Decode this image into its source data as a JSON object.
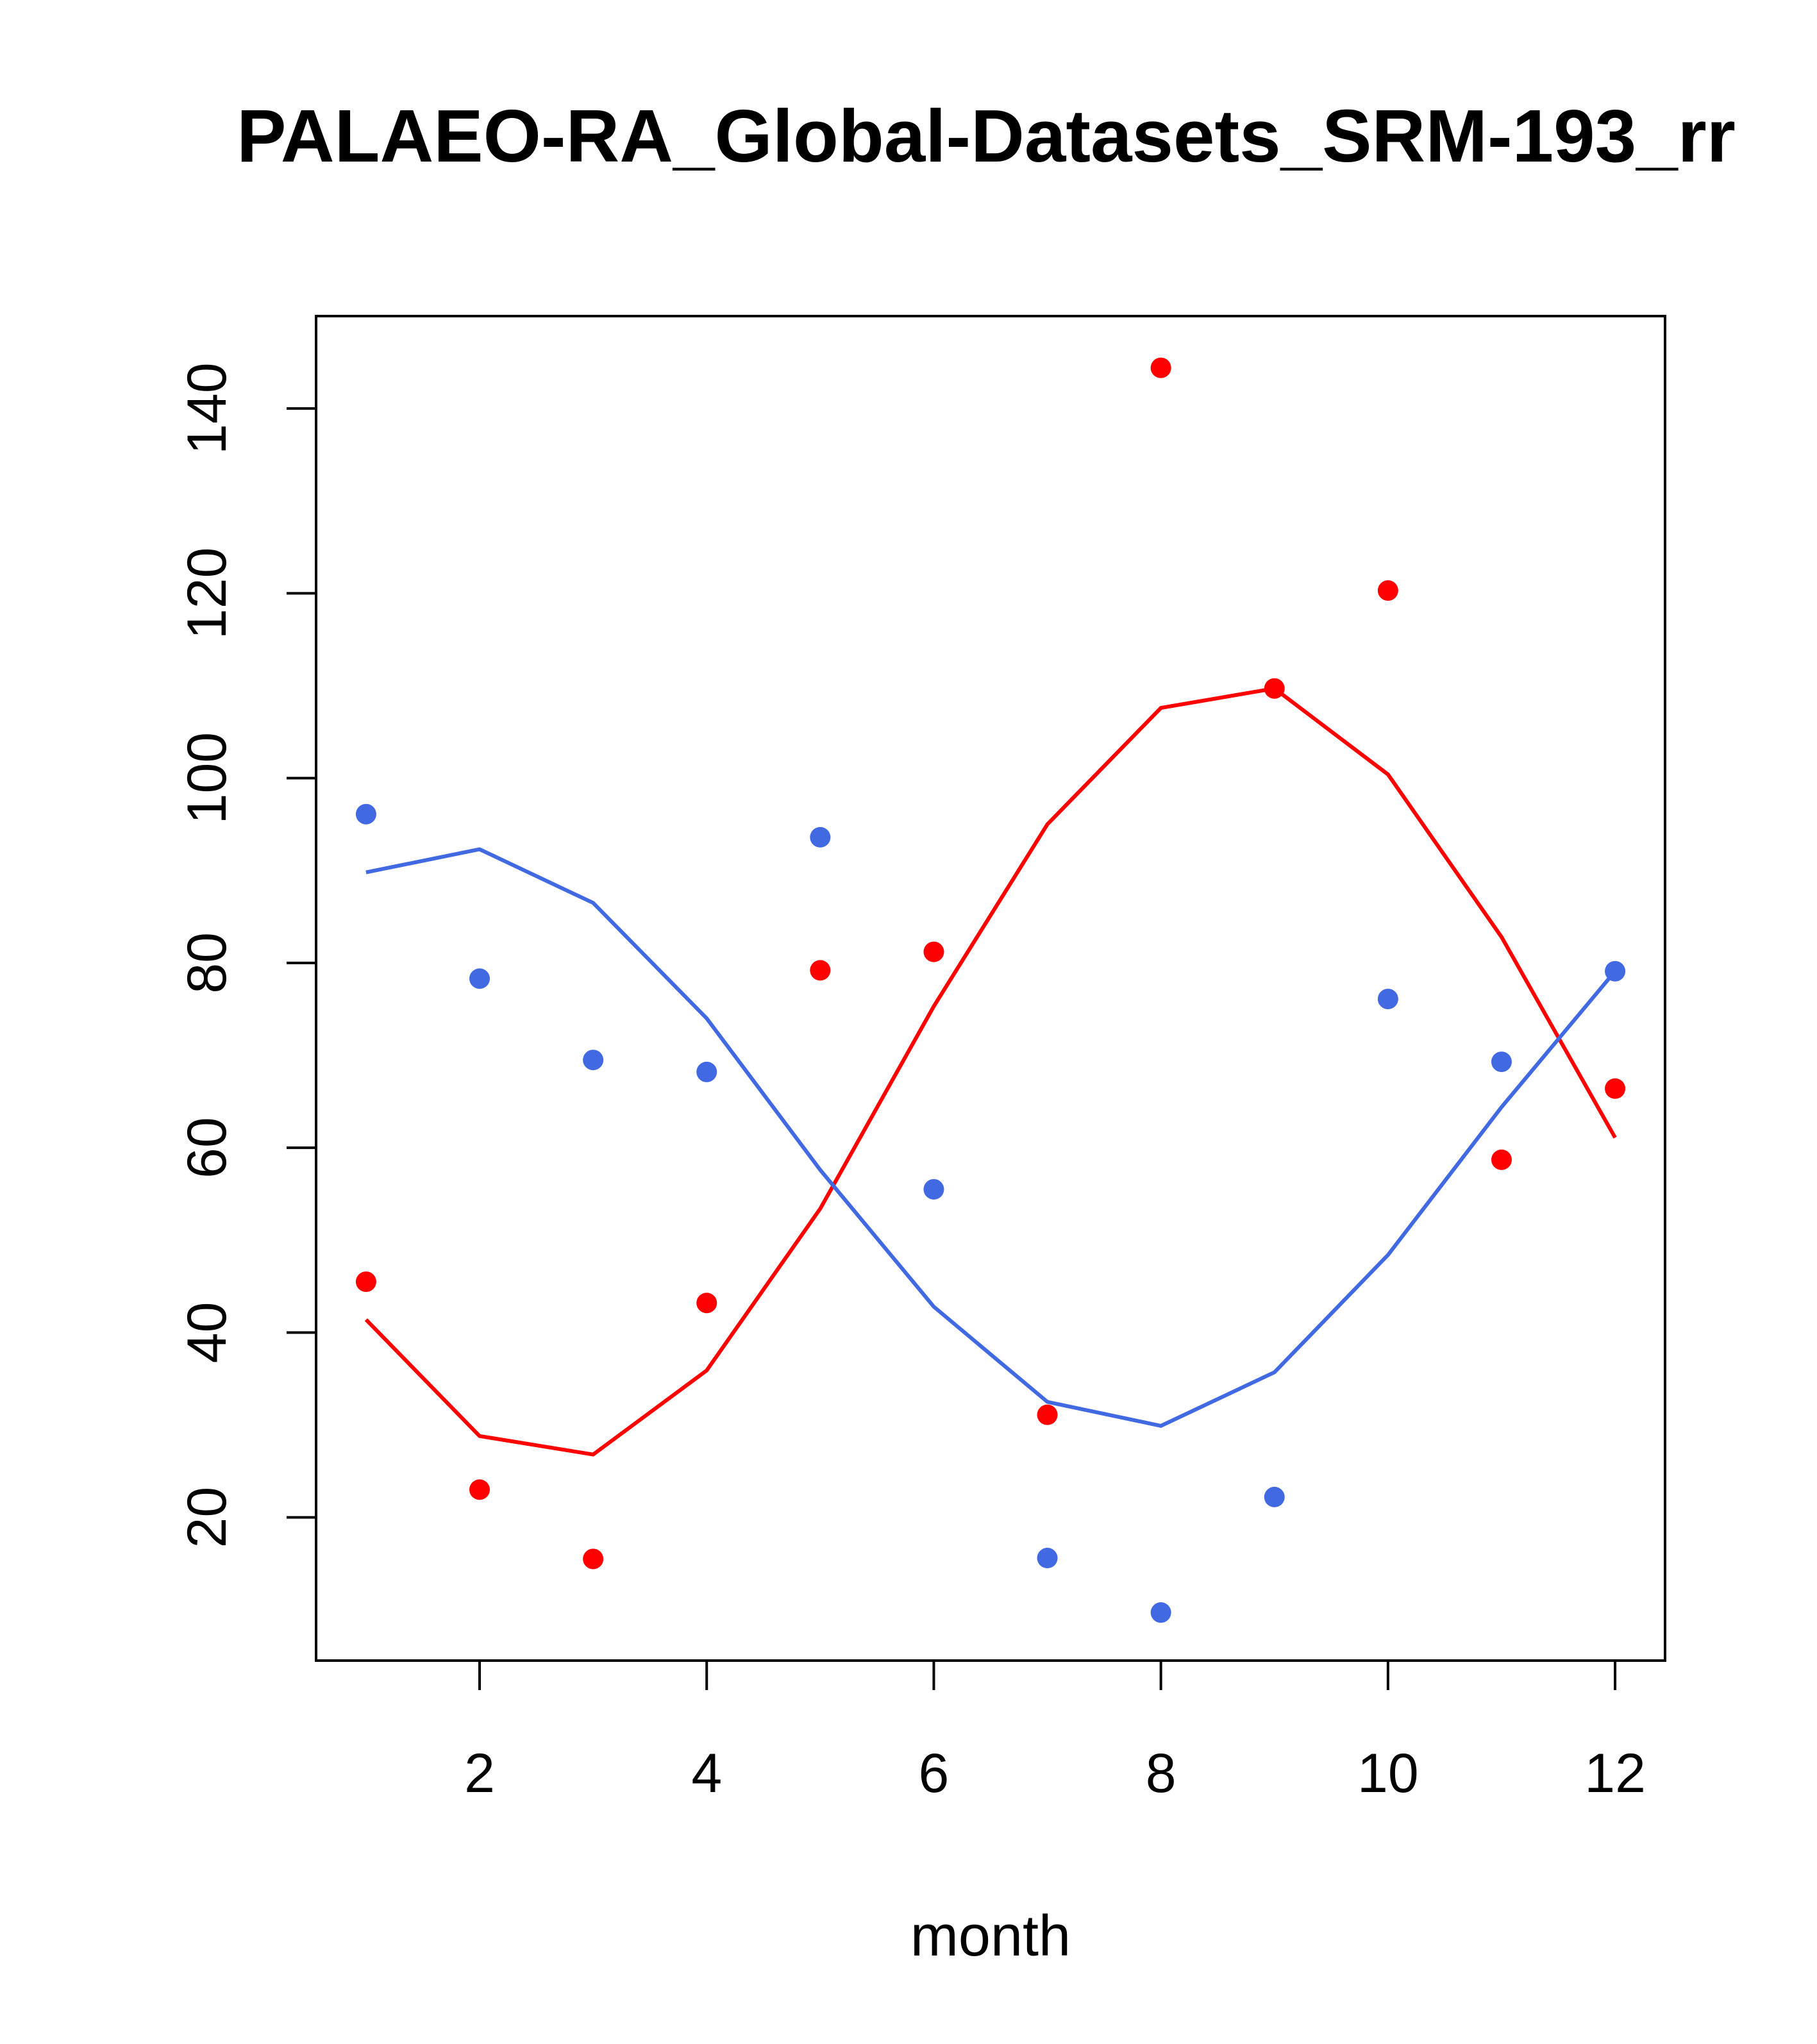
{
  "chart_data": {
    "type": "scatter",
    "title": "PALAEO-RA_Global-Datasets_SRM-193_rr",
    "xlabel": "month",
    "ylabel": "",
    "xlim": [
      0.56,
      12.44
    ],
    "ylim": [
      4.5,
      150
    ],
    "x_ticks": [
      2,
      4,
      6,
      8,
      10,
      12
    ],
    "y_ticks": [
      20,
      40,
      60,
      80,
      100,
      120,
      140
    ],
    "grid": false,
    "legend": "none",
    "x": [
      1,
      2,
      3,
      4,
      5,
      6,
      7,
      8,
      9,
      10,
      11,
      12
    ],
    "series": [
      {
        "name": "red",
        "color": "#ff0000",
        "points": [
          45.5,
          23.0,
          15.5,
          43.2,
          79.2,
          81.2,
          31.1,
          144.4,
          109.7,
          120.3,
          58.7,
          66.4
        ],
        "line": [
          41.4,
          28.8,
          26.8,
          35.9,
          53.4,
          75.3,
          95.0,
          107.6,
          109.7,
          100.4,
          82.8,
          61.1
        ]
      },
      {
        "name": "blue",
        "color": "#4169e1",
        "points": [
          96.1,
          78.3,
          69.5,
          68.2,
          93.6,
          55.5,
          15.6,
          9.7,
          22.2,
          76.1,
          69.3,
          79.1
        ],
        "line": [
          89.8,
          92.3,
          86.5,
          74.0,
          57.6,
          42.8,
          32.5,
          29.9,
          35.7,
          48.4,
          64.4,
          79.1
        ]
      }
    ]
  }
}
